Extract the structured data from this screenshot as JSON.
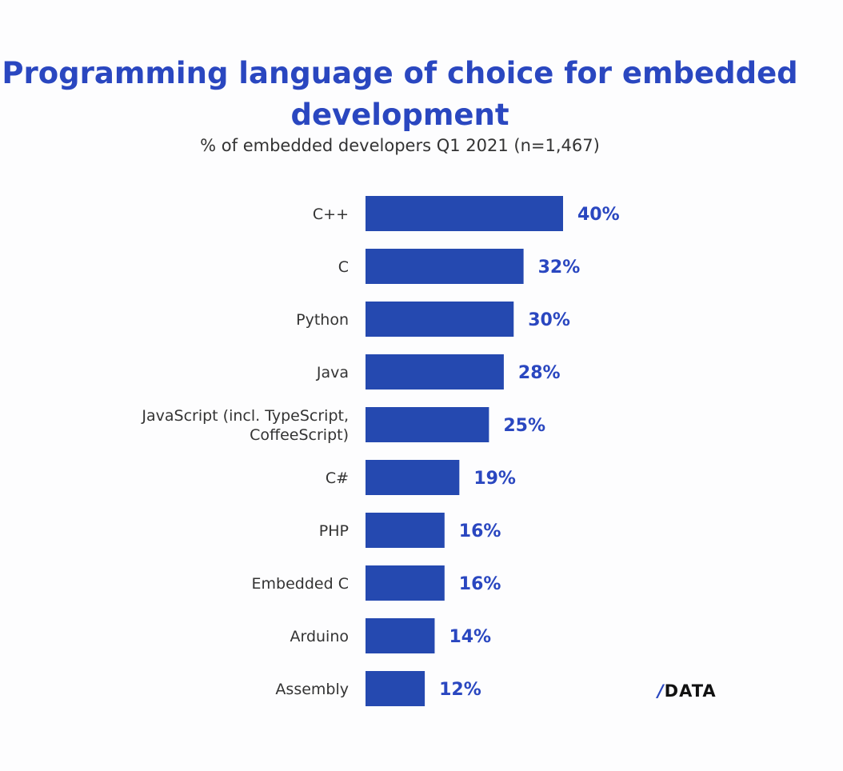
{
  "chart_data": {
    "type": "bar",
    "orientation": "horizontal",
    "title": "Programming language of choice for embedded development",
    "subtitle": "% of embedded developers Q1 2021 (n=1,467)",
    "categories": [
      "C++",
      "C",
      "Python",
      "Java",
      "JavaScript (incl. TypeScript, CoffeeScript)",
      "C#",
      "PHP",
      "Embedded C",
      "Arduino",
      "Assembly"
    ],
    "category_lines": [
      [
        "C++"
      ],
      [
        "C"
      ],
      [
        "Python"
      ],
      [
        "Java"
      ],
      [
        "JavaScript (incl. TypeScript,",
        "CoffeeScript)"
      ],
      [
        "C#"
      ],
      [
        "PHP"
      ],
      [
        "Embedded C"
      ],
      [
        "Arduino"
      ],
      [
        "Assembly"
      ]
    ],
    "values": [
      40,
      32,
      30,
      28,
      25,
      19,
      16,
      16,
      14,
      12
    ],
    "data_labels": [
      "40%",
      "32%",
      "30%",
      "28%",
      "25%",
      "19%",
      "16%",
      "16%",
      "14%",
      "12%"
    ],
    "unit": "%",
    "xlim": [
      0,
      40
    ],
    "grid": false,
    "colors": {
      "bar": "#2549b0",
      "label": "#2a47c0",
      "title": "#2a47c0",
      "category": "#333333"
    }
  },
  "logo": {
    "slash": "/",
    "text": "DATA"
  }
}
